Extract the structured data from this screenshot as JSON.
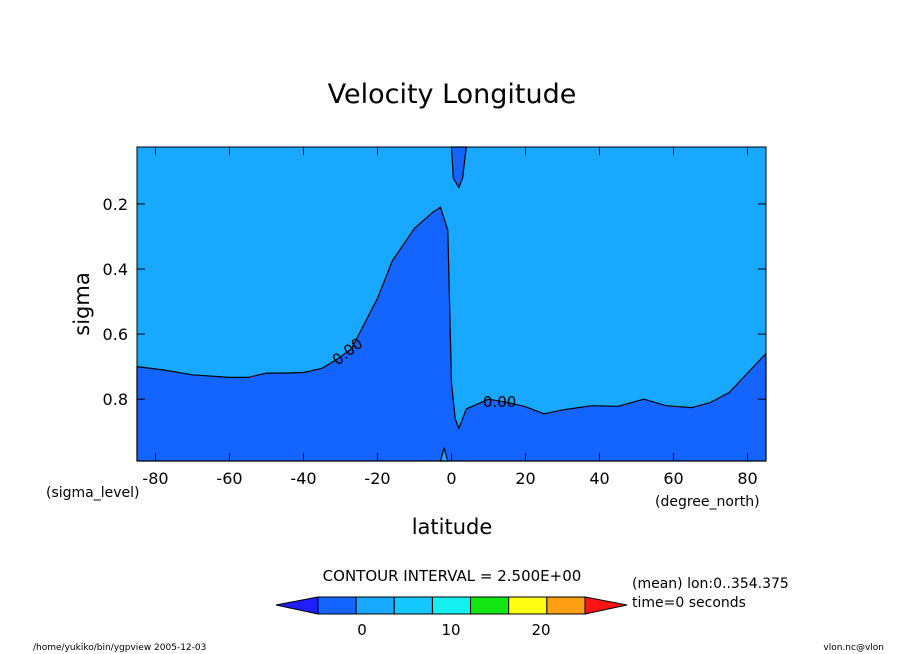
{
  "chart_data": {
    "type": "contour",
    "title": "Velocity Longitude",
    "xlabel": "latitude",
    "ylabel": "sigma",
    "x_units": "(degree_north)",
    "y_units": "(sigma_level)",
    "xlim": [
      -85,
      85
    ],
    "ylim": [
      0.025,
      0.99
    ],
    "y_inverted": true,
    "x_ticks": [
      -80,
      -60,
      -40,
      -20,
      0,
      20,
      40,
      60,
      80
    ],
    "y_ticks": [
      0.2,
      0.4,
      0.6,
      0.8
    ],
    "x_tick_labels": [
      "-80",
      "-60",
      "-40",
      "-20",
      "0",
      "20",
      "40",
      "60",
      "80"
    ],
    "y_tick_labels": [
      "0.2",
      "0.4",
      "0.6",
      "0.8"
    ],
    "background_level_color": "#18a8ff",
    "contour_interval_label": "CONTOUR INTERVAL = 2.500E+00",
    "regions": [
      {
        "color": "#1464ff",
        "points": [
          [
            -85,
            0.99
          ],
          [
            -85,
            0.7
          ],
          [
            -78,
            0.71
          ],
          [
            -70,
            0.725
          ],
          [
            -60,
            0.733
          ],
          [
            -55,
            0.733
          ],
          [
            -50,
            0.72
          ],
          [
            -45,
            0.72
          ],
          [
            -40,
            0.718
          ],
          [
            -35,
            0.705
          ],
          [
            -31,
            0.678
          ],
          [
            -27,
            0.645
          ],
          [
            -25,
            0.6
          ],
          [
            -20,
            0.49
          ],
          [
            -16,
            0.375
          ],
          [
            -10,
            0.275
          ],
          [
            -5,
            0.225
          ],
          [
            -3,
            0.21
          ],
          [
            -1,
            0.28
          ],
          [
            0,
            0.75
          ],
          [
            1,
            0.86
          ],
          [
            2,
            0.89
          ],
          [
            4,
            0.83
          ],
          [
            10,
            0.8
          ],
          [
            15,
            0.81
          ],
          [
            20,
            0.823
          ],
          [
            25,
            0.845
          ],
          [
            30,
            0.833
          ],
          [
            38,
            0.82
          ],
          [
            45,
            0.822
          ],
          [
            52,
            0.8
          ],
          [
            58,
            0.82
          ],
          [
            65,
            0.826
          ],
          [
            70,
            0.81
          ],
          [
            75,
            0.78
          ],
          [
            80,
            0.72
          ],
          [
            85,
            0.66
          ],
          [
            85,
            0.99
          ]
        ]
      },
      {
        "color": "#1464ff",
        "points": [
          [
            0,
            0.025
          ],
          [
            0.5,
            0.12
          ],
          [
            2,
            0.15
          ],
          [
            3,
            0.12
          ],
          [
            4,
            0.025
          ]
        ]
      },
      {
        "color": "#18a8ff",
        "points": [
          [
            -3,
            0.99
          ],
          [
            -2,
            0.95
          ],
          [
            -1,
            0.99
          ]
        ]
      }
    ],
    "contour_labels": [
      {
        "text": "0.00",
        "x": -28,
        "y": 0.655,
        "angle": -38
      },
      {
        "text": "0.00",
        "x": 13,
        "y": 0.81,
        "angle": 0
      }
    ],
    "colorbar": {
      "colors": [
        "#1e1eff",
        "#1464ff",
        "#18a8ff",
        "#14c8ff",
        "#14f0f0",
        "#14e614",
        "#ffff14",
        "#ffa014",
        "#ff1414"
      ],
      "tick_labels": [
        "0",
        "10",
        "20"
      ]
    }
  },
  "info": {
    "mean_line": "(mean) lon:0..354.375",
    "time_line": "time=0 seconds",
    "footer_left": "/home/yukiko/bin/ygpview  2005-12-03",
    "footer_right": "vlon.nc@vlon"
  }
}
